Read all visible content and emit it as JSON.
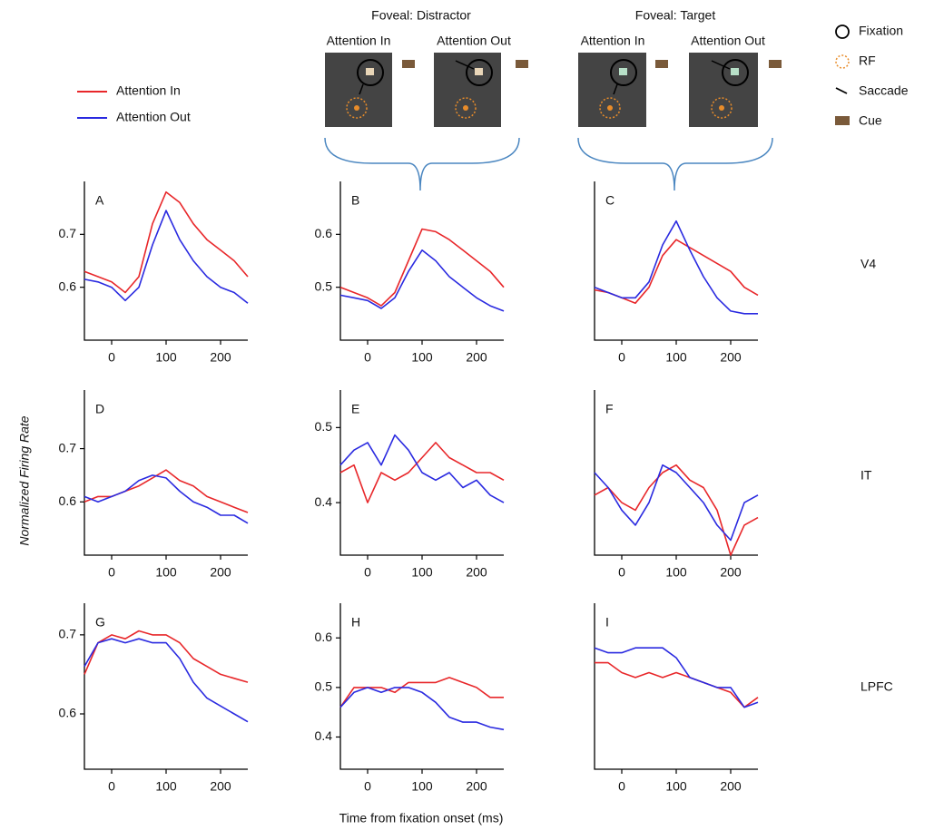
{
  "figure": {
    "y_label": "Normalized Firing Rate",
    "x_label": "Time from fixation onset  (ms)",
    "row_labels": [
      "V4",
      "IT",
      "LPFC"
    ],
    "schematic": {
      "groups": [
        {
          "title": "Foveal: Distractor",
          "panels": [
            "Attention In",
            "Attention Out"
          ]
        },
        {
          "title": "Foveal: Target",
          "panels": [
            "Attention In",
            "Attention Out"
          ]
        }
      ],
      "key": [
        "Fixation",
        "RF",
        "Saccade",
        "Cue"
      ]
    }
  },
  "chart_data": [
    {
      "type": "line",
      "label": "A",
      "x": [
        -50,
        -25,
        0,
        25,
        50,
        75,
        100,
        125,
        150,
        175,
        200,
        225,
        250
      ],
      "xlim": [
        -50,
        250
      ],
      "xticks": [
        0,
        100,
        200
      ],
      "ylim": [
        0.5,
        0.8
      ],
      "yticks": [
        0.6,
        0.7
      ],
      "series": [
        {
          "name": "Attention In",
          "color": "#e8272a",
          "values": [
            0.63,
            0.62,
            0.61,
            0.59,
            0.62,
            0.72,
            0.78,
            0.76,
            0.72,
            0.69,
            0.67,
            0.65,
            0.62
          ]
        },
        {
          "name": "Attention Out",
          "color": "#2a2ae0",
          "values": [
            0.615,
            0.61,
            0.6,
            0.575,
            0.6,
            0.68,
            0.745,
            0.69,
            0.65,
            0.62,
            0.6,
            0.59,
            0.57
          ]
        }
      ]
    },
    {
      "type": "line",
      "label": "B",
      "x": [
        -50,
        -25,
        0,
        25,
        50,
        75,
        100,
        125,
        150,
        175,
        200,
        225,
        250
      ],
      "xlim": [
        -50,
        250
      ],
      "xticks": [
        0,
        100,
        200
      ],
      "ylim": [
        0.4,
        0.7
      ],
      "yticks": [
        0.5,
        0.6
      ],
      "series": [
        {
          "color": "#e8272a",
          "values": [
            0.5,
            0.49,
            0.48,
            0.465,
            0.49,
            0.55,
            0.61,
            0.605,
            0.59,
            0.57,
            0.55,
            0.53,
            0.5
          ]
        },
        {
          "color": "#2a2ae0",
          "values": [
            0.485,
            0.48,
            0.475,
            0.46,
            0.48,
            0.53,
            0.57,
            0.55,
            0.52,
            0.5,
            0.48,
            0.465,
            0.455
          ]
        }
      ]
    },
    {
      "type": "line",
      "label": "C",
      "x": [
        -50,
        -25,
        0,
        25,
        50,
        75,
        100,
        125,
        150,
        175,
        200,
        225,
        250
      ],
      "xlim": [
        -50,
        250
      ],
      "xticks": [
        0,
        100,
        200
      ],
      "ylim": [
        0.4,
        0.7
      ],
      "series": [
        {
          "color": "#e8272a",
          "values": [
            0.495,
            0.49,
            0.48,
            0.47,
            0.5,
            0.56,
            0.59,
            0.575,
            0.56,
            0.545,
            0.53,
            0.5,
            0.485
          ]
        },
        {
          "color": "#2a2ae0",
          "values": [
            0.5,
            0.49,
            0.48,
            0.48,
            0.51,
            0.58,
            0.625,
            0.57,
            0.52,
            0.48,
            0.455,
            0.45,
            0.45
          ]
        }
      ]
    },
    {
      "type": "line",
      "label": "D",
      "x": [
        -50,
        -25,
        0,
        25,
        50,
        75,
        100,
        125,
        150,
        175,
        200,
        225,
        250
      ],
      "xlim": [
        -50,
        250
      ],
      "xticks": [
        0,
        100,
        200
      ],
      "ylim": [
        0.5,
        0.81
      ],
      "yticks": [
        0.6,
        0.7
      ],
      "series": [
        {
          "color": "#e8272a",
          "values": [
            0.6,
            0.61,
            0.61,
            0.62,
            0.63,
            0.645,
            0.66,
            0.64,
            0.63,
            0.61,
            0.6,
            0.59,
            0.58
          ]
        },
        {
          "color": "#2a2ae0",
          "values": [
            0.61,
            0.6,
            0.61,
            0.62,
            0.64,
            0.65,
            0.645,
            0.62,
            0.6,
            0.59,
            0.575,
            0.575,
            0.56
          ]
        }
      ]
    },
    {
      "type": "line",
      "label": "E",
      "x": [
        -50,
        -25,
        0,
        25,
        50,
        75,
        100,
        125,
        150,
        175,
        200,
        225,
        250
      ],
      "xlim": [
        -50,
        250
      ],
      "xticks": [
        0,
        100,
        200
      ],
      "ylim": [
        0.33,
        0.55
      ],
      "yticks": [
        0.4,
        0.5
      ],
      "series": [
        {
          "color": "#e8272a",
          "values": [
            0.44,
            0.45,
            0.4,
            0.44,
            0.43,
            0.44,
            0.46,
            0.48,
            0.46,
            0.45,
            0.44,
            0.44,
            0.43
          ]
        },
        {
          "color": "#2a2ae0",
          "values": [
            0.45,
            0.47,
            0.48,
            0.45,
            0.49,
            0.47,
            0.44,
            0.43,
            0.44,
            0.42,
            0.43,
            0.41,
            0.4
          ]
        }
      ]
    },
    {
      "type": "line",
      "label": "F",
      "x": [
        -50,
        -25,
        0,
        25,
        50,
        75,
        100,
        125,
        150,
        175,
        200,
        225,
        250
      ],
      "xlim": [
        -50,
        250
      ],
      "xticks": [
        0,
        100,
        200
      ],
      "ylim": [
        0.33,
        0.55
      ],
      "series": [
        {
          "color": "#e8272a",
          "values": [
            0.41,
            0.42,
            0.4,
            0.39,
            0.42,
            0.44,
            0.45,
            0.43,
            0.42,
            0.39,
            0.33,
            0.37,
            0.38
          ]
        },
        {
          "color": "#2a2ae0",
          "values": [
            0.44,
            0.42,
            0.39,
            0.37,
            0.4,
            0.45,
            0.44,
            0.42,
            0.4,
            0.37,
            0.35,
            0.4,
            0.41
          ]
        }
      ]
    },
    {
      "type": "line",
      "label": "G",
      "x": [
        -50,
        -25,
        0,
        25,
        50,
        75,
        100,
        125,
        150,
        175,
        200,
        225,
        250
      ],
      "xlim": [
        -50,
        250
      ],
      "xticks": [
        0,
        100,
        200
      ],
      "ylim": [
        0.53,
        0.74
      ],
      "yticks": [
        0.6,
        0.7
      ],
      "series": [
        {
          "color": "#e8272a",
          "values": [
            0.65,
            0.69,
            0.7,
            0.695,
            0.705,
            0.7,
            0.7,
            0.69,
            0.67,
            0.66,
            0.65,
            0.645,
            0.64
          ]
        },
        {
          "color": "#2a2ae0",
          "values": [
            0.66,
            0.69,
            0.695,
            0.69,
            0.695,
            0.69,
            0.69,
            0.67,
            0.64,
            0.62,
            0.61,
            0.6,
            0.59
          ]
        }
      ]
    },
    {
      "type": "line",
      "label": "H",
      "x": [
        -50,
        -25,
        0,
        25,
        50,
        75,
        100,
        125,
        150,
        175,
        200,
        225,
        250
      ],
      "xlim": [
        -50,
        250
      ],
      "xticks": [
        0,
        100,
        200
      ],
      "ylim": [
        0.335,
        0.67
      ],
      "yticks": [
        0.4,
        0.5,
        0.6
      ],
      "series": [
        {
          "color": "#e8272a",
          "values": [
            0.46,
            0.5,
            0.5,
            0.5,
            0.49,
            0.51,
            0.51,
            0.51,
            0.52,
            0.51,
            0.5,
            0.48,
            0.48
          ]
        },
        {
          "color": "#2a2ae0",
          "values": [
            0.46,
            0.49,
            0.5,
            0.49,
            0.5,
            0.5,
            0.49,
            0.47,
            0.44,
            0.43,
            0.43,
            0.42,
            0.415
          ]
        }
      ]
    },
    {
      "type": "line",
      "label": "I",
      "x": [
        -50,
        -25,
        0,
        25,
        50,
        75,
        100,
        125,
        150,
        175,
        200,
        225,
        250
      ],
      "xlim": [
        -50,
        250
      ],
      "xticks": [
        0,
        100,
        200
      ],
      "ylim": [
        0.335,
        0.67
      ],
      "series": [
        {
          "color": "#e8272a",
          "values": [
            0.55,
            0.55,
            0.53,
            0.52,
            0.53,
            0.52,
            0.53,
            0.52,
            0.51,
            0.5,
            0.49,
            0.46,
            0.48
          ]
        },
        {
          "color": "#2a2ae0",
          "values": [
            0.58,
            0.57,
            0.57,
            0.58,
            0.58,
            0.58,
            0.56,
            0.52,
            0.51,
            0.5,
            0.5,
            0.46,
            0.47
          ]
        }
      ]
    }
  ]
}
